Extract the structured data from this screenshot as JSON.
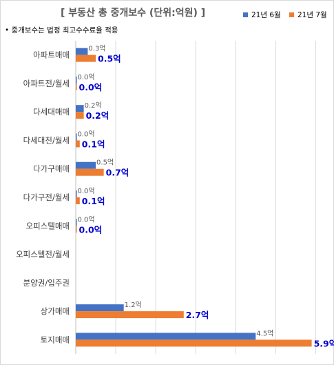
{
  "chart_data": {
    "type": "bar",
    "orientation": "horizontal",
    "title": "[ 부동산 총 중개보수 (단위:억원) ]",
    "note": "중개보수는 법정 최고수수료율 적용",
    "categories": [
      "아파트매매",
      "아파트전/월세",
      "다세대매매",
      "다세대전/월세",
      "다가구매매",
      "다가구전/월세",
      "오피스텔매매",
      "오피스텔전/월세",
      "분양권/입주권",
      "상가매매",
      "토지매매"
    ],
    "series": [
      {
        "name": "21년 6월",
        "color": "#4472c4",
        "values": [
          0.3,
          0.0,
          0.2,
          0.0,
          0.5,
          0.0,
          0.0,
          null,
          null,
          1.2,
          4.5
        ],
        "labels": [
          "0.3억",
          "0.0억",
          "0.2억",
          "0.0억",
          "0.5억",
          "0.0억",
          "0.0억",
          "",
          "",
          "1.2억",
          "4.5억"
        ]
      },
      {
        "name": "21년 7월",
        "color": "#ed7d31",
        "values": [
          0.5,
          0.0,
          0.2,
          0.1,
          0.7,
          0.1,
          0.0,
          null,
          null,
          2.7,
          5.9
        ],
        "labels": [
          "0.5억",
          "0.0억",
          "0.2억",
          "0.1억",
          "0.7억",
          "0.1억",
          "0.0억",
          "",
          "",
          "2.7억",
          "5.9억"
        ]
      }
    ],
    "xlim": [
      0,
      6.2
    ],
    "grid": true,
    "legend_position": "top-right"
  }
}
